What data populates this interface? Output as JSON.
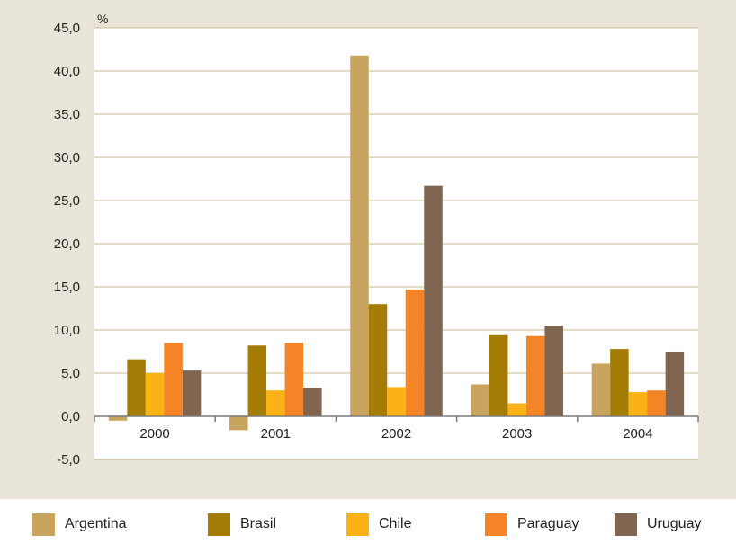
{
  "chart_data": {
    "type": "bar",
    "unit_label": "%",
    "categories": [
      "2000",
      "2001",
      "2002",
      "2003",
      "2004"
    ],
    "series": [
      {
        "name": "Argentina",
        "color": "#c9a45e",
        "values": [
          -0.5,
          -1.6,
          41.8,
          3.7,
          6.1
        ]
      },
      {
        "name": "Brasil",
        "color": "#a47b05",
        "values": [
          6.6,
          8.2,
          13.0,
          9.4,
          7.8
        ]
      },
      {
        "name": "Chile",
        "color": "#fbb217",
        "values": [
          5.0,
          3.0,
          3.4,
          1.5,
          2.8
        ]
      },
      {
        "name": "Paraguay",
        "color": "#f58427",
        "values": [
          8.5,
          8.5,
          14.7,
          9.3,
          3.0
        ]
      },
      {
        "name": "Uruguay",
        "color": "#806550",
        "values": [
          5.3,
          3.3,
          26.7,
          10.5,
          7.4
        ]
      }
    ],
    "yticks": [
      "45,0",
      "40,0",
      "35,0",
      "30,0",
      "25,0",
      "20,0",
      "15,0",
      "10,0",
      "5,0",
      "0,0",
      "-5,0"
    ],
    "ylim": [
      -5,
      45
    ],
    "grid": true,
    "legend_position": "bottom",
    "colors": {
      "panel_background": "#e8e4d8",
      "plot_background": "#ffffff",
      "gridline": "#c9bd93",
      "axis": "#7a7a7a"
    }
  }
}
